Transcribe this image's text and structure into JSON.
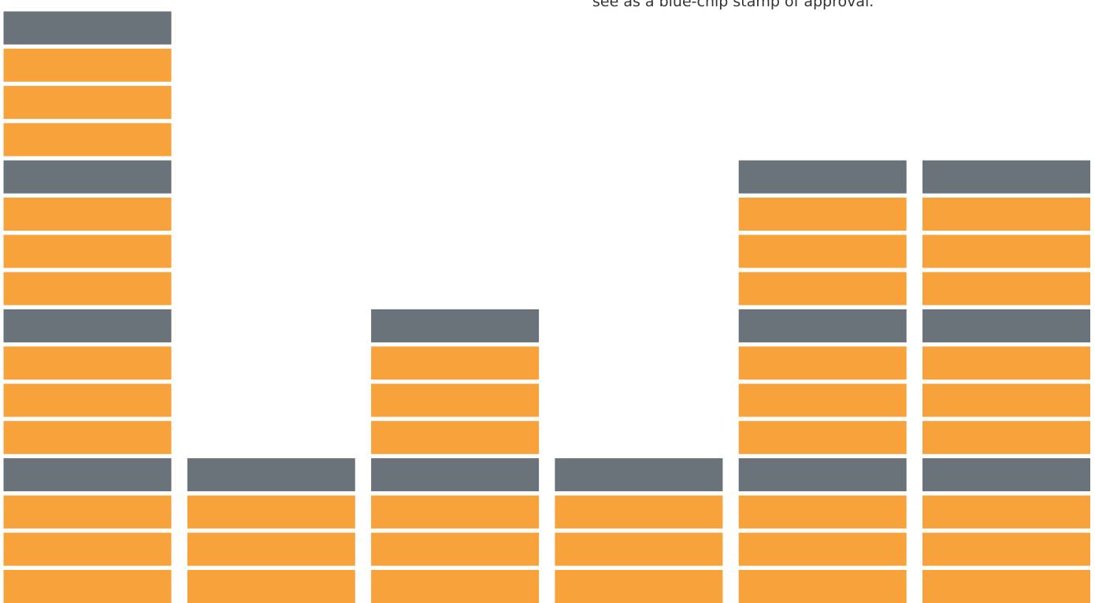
{
  "caption": "see as a blue-chip stamp of approval.",
  "chart_data": {
    "type": "pictogram",
    "values": [
      4,
      1,
      2,
      1,
      3,
      3
    ],
    "color": "#f7a23a",
    "accent_color": "#6a7379",
    "blocks_per_unit": 4
  }
}
